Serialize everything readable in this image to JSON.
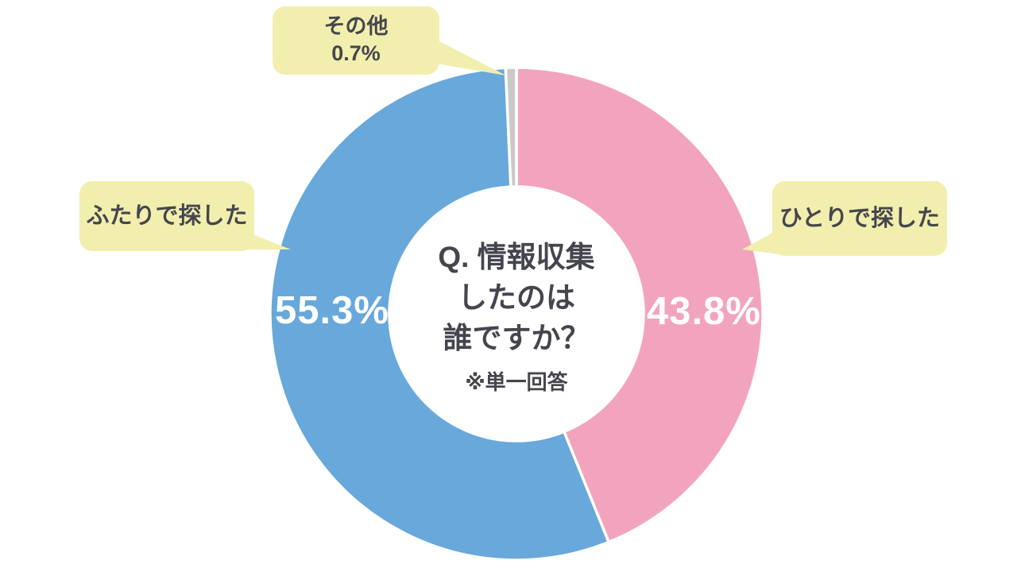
{
  "chart_data": {
    "type": "pie",
    "donut": true,
    "title": "Q. 情報収集したのは誰ですか？",
    "title_lines": [
      "Q. 情報収集",
      "したのは",
      "誰ですか？"
    ],
    "note": "※単一回答",
    "direction": "clockwise",
    "start_angle_deg": 0,
    "legend_position": "callouts",
    "slices": [
      {
        "id": "alone",
        "label": "ひとりで探した",
        "value": 43.8,
        "display": "43.8%",
        "color": "#f2a4be"
      },
      {
        "id": "together",
        "label": "ふたりで探した",
        "value": 55.3,
        "display": "55.3%",
        "color": "#68a8db"
      },
      {
        "id": "other",
        "label": "その他",
        "value": 0.7,
        "display": "0.7%",
        "color": "#c9c9c9"
      }
    ],
    "colors": {
      "callout_bg": "#f2eeae",
      "text_dark": "#45464d",
      "percent_text": "#ffffff",
      "slice_gap_stroke": "#ffffff"
    },
    "geometry_note": "donut, hole ratio ~0.52, slice order clockwise from 12 o'clock: alone, together, other"
  }
}
